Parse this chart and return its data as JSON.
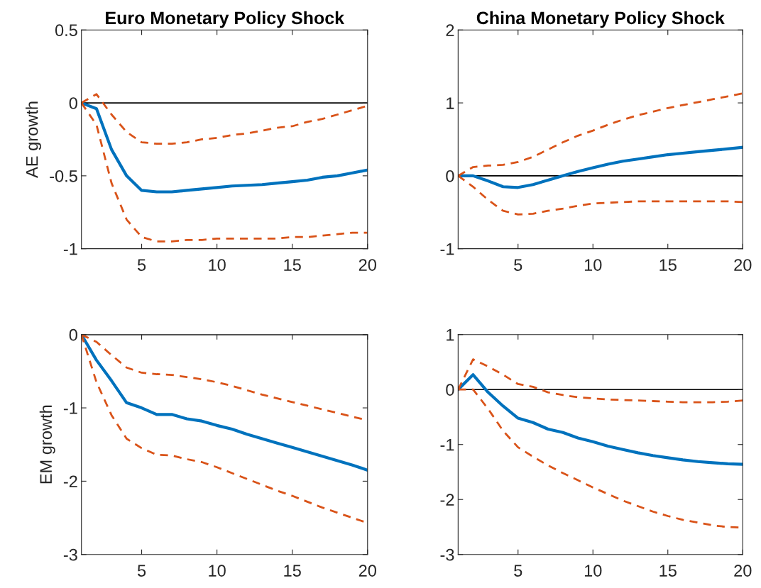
{
  "chart_data": [
    {
      "type": "line",
      "title": "Euro Monetary Policy Shock",
      "ylabel": "AE growth",
      "x": [
        1,
        2,
        3,
        4,
        5,
        6,
        7,
        8,
        9,
        10,
        11,
        12,
        13,
        14,
        15,
        16,
        17,
        18,
        19,
        20
      ],
      "xlim": [
        1,
        20
      ],
      "xticks": [
        5,
        10,
        15,
        20
      ],
      "ylim": [
        -1,
        0.5
      ],
      "yticks": [
        -1,
        -0.5,
        0,
        0.5
      ],
      "grid": false,
      "series": [
        {
          "color": "#0072bd",
          "line_style": "solid",
          "values": [
            0,
            -0.04,
            -0.32,
            -0.5,
            -0.6,
            -0.61,
            -0.61,
            -0.6,
            -0.59,
            -0.58,
            -0.57,
            -0.565,
            -0.56,
            -0.55,
            -0.54,
            -0.53,
            -0.51,
            -0.5,
            -0.48,
            -0.46
          ]
        },
        {
          "color": "#d95319",
          "line_style": "dashed",
          "values": [
            0,
            0.06,
            -0.08,
            -0.2,
            -0.27,
            -0.28,
            -0.28,
            -0.27,
            -0.25,
            -0.24,
            -0.22,
            -0.21,
            -0.19,
            -0.17,
            -0.16,
            -0.13,
            -0.11,
            -0.08,
            -0.05,
            -0.02
          ]
        },
        {
          "color": "#d95319",
          "line_style": "dashed",
          "values": [
            0,
            -0.15,
            -0.55,
            -0.8,
            -0.92,
            -0.95,
            -0.95,
            -0.94,
            -0.94,
            -0.93,
            -0.93,
            -0.93,
            -0.93,
            -0.93,
            -0.92,
            -0.92,
            -0.91,
            -0.9,
            -0.89,
            -0.89
          ]
        }
      ],
      "ref_lines": [
        {
          "axis": "y",
          "value": 0,
          "color": "#000000"
        }
      ]
    },
    {
      "type": "line",
      "title": "China Monetary Policy Shock",
      "x": [
        1,
        2,
        3,
        4,
        5,
        6,
        7,
        8,
        9,
        10,
        11,
        12,
        13,
        14,
        15,
        16,
        17,
        18,
        19,
        20
      ],
      "xlim": [
        1,
        20
      ],
      "xticks": [
        5,
        10,
        15,
        20
      ],
      "ylim": [
        -1,
        2
      ],
      "yticks": [
        -1,
        0,
        1,
        2
      ],
      "grid": false,
      "series": [
        {
          "color": "#0072bd",
          "line_style": "solid",
          "values": [
            0,
            0,
            -0.07,
            -0.15,
            -0.16,
            -0.12,
            -0.06,
            0,
            0.06,
            0.11,
            0.16,
            0.2,
            0.23,
            0.26,
            0.29,
            0.31,
            0.33,
            0.35,
            0.37,
            0.39
          ]
        },
        {
          "color": "#d95319",
          "line_style": "dashed",
          "values": [
            0,
            0.12,
            0.14,
            0.15,
            0.19,
            0.26,
            0.36,
            0.46,
            0.55,
            0.62,
            0.7,
            0.77,
            0.83,
            0.88,
            0.93,
            0.97,
            1.01,
            1.05,
            1.09,
            1.13
          ]
        },
        {
          "color": "#d95319",
          "line_style": "dashed",
          "values": [
            0,
            -0.15,
            -0.33,
            -0.48,
            -0.53,
            -0.52,
            -0.48,
            -0.45,
            -0.41,
            -0.38,
            -0.37,
            -0.36,
            -0.35,
            -0.35,
            -0.35,
            -0.35,
            -0.35,
            -0.35,
            -0.35,
            -0.36
          ]
        }
      ],
      "ref_lines": [
        {
          "axis": "y",
          "value": 0,
          "color": "#000000"
        }
      ]
    },
    {
      "type": "line",
      "ylabel": "EM growth",
      "x": [
        1,
        2,
        3,
        4,
        5,
        6,
        7,
        8,
        9,
        10,
        11,
        12,
        13,
        14,
        15,
        16,
        17,
        18,
        19,
        20
      ],
      "xlim": [
        1,
        20
      ],
      "xticks": [
        5,
        10,
        15,
        20
      ],
      "ylim": [
        -3,
        0
      ],
      "yticks": [
        -3,
        -2,
        -1,
        0
      ],
      "grid": false,
      "series": [
        {
          "color": "#0072bd",
          "line_style": "solid",
          "values": [
            0,
            -0.35,
            -0.63,
            -0.93,
            -1.0,
            -1.09,
            -1.09,
            -1.15,
            -1.18,
            -1.24,
            -1.29,
            -1.36,
            -1.42,
            -1.48,
            -1.54,
            -1.6,
            -1.66,
            -1.72,
            -1.78,
            -1.85
          ]
        },
        {
          "color": "#d95319",
          "line_style": "dashed",
          "values": [
            0,
            -0.1,
            -0.28,
            -0.45,
            -0.52,
            -0.54,
            -0.55,
            -0.58,
            -0.61,
            -0.65,
            -0.7,
            -0.76,
            -0.82,
            -0.87,
            -0.92,
            -0.97,
            -1.02,
            -1.07,
            -1.12,
            -1.17
          ]
        },
        {
          "color": "#d95319",
          "line_style": "dashed",
          "values": [
            0,
            -0.65,
            -1.1,
            -1.42,
            -1.55,
            -1.64,
            -1.65,
            -1.7,
            -1.74,
            -1.81,
            -1.89,
            -1.97,
            -2.05,
            -2.13,
            -2.2,
            -2.28,
            -2.36,
            -2.43,
            -2.5,
            -2.57
          ]
        }
      ],
      "ref_lines": [
        {
          "axis": "y",
          "value": 0,
          "color": "#000000"
        }
      ]
    },
    {
      "type": "line",
      "x": [
        1,
        2,
        3,
        4,
        5,
        6,
        7,
        8,
        9,
        10,
        11,
        12,
        13,
        14,
        15,
        16,
        17,
        18,
        19,
        20
      ],
      "xlim": [
        1,
        20
      ],
      "xticks": [
        5,
        10,
        15,
        20
      ],
      "ylim": [
        -3,
        1
      ],
      "yticks": [
        -3,
        -2,
        -1,
        0,
        1
      ],
      "grid": false,
      "series": [
        {
          "color": "#0072bd",
          "line_style": "solid",
          "values": [
            0,
            0.27,
            -0.05,
            -0.3,
            -0.52,
            -0.6,
            -0.72,
            -0.78,
            -0.88,
            -0.95,
            -1.03,
            -1.09,
            -1.15,
            -1.2,
            -1.24,
            -1.28,
            -1.31,
            -1.33,
            -1.35,
            -1.36
          ]
        },
        {
          "color": "#d95319",
          "line_style": "dashed",
          "values": [
            0,
            0.55,
            0.42,
            0.27,
            0.1,
            0.05,
            -0.05,
            -0.1,
            -0.14,
            -0.16,
            -0.18,
            -0.19,
            -0.2,
            -0.21,
            -0.22,
            -0.23,
            -0.23,
            -0.23,
            -0.22,
            -0.2
          ]
        },
        {
          "color": "#d95319",
          "line_style": "dashed",
          "values": [
            0,
            0,
            -0.35,
            -0.75,
            -1.05,
            -1.22,
            -1.38,
            -1.52,
            -1.65,
            -1.78,
            -1.9,
            -2.02,
            -2.12,
            -2.22,
            -2.3,
            -2.37,
            -2.42,
            -2.47,
            -2.5,
            -2.51
          ]
        }
      ],
      "ref_lines": [
        {
          "axis": "y",
          "value": 0,
          "color": "#000000"
        }
      ]
    }
  ]
}
